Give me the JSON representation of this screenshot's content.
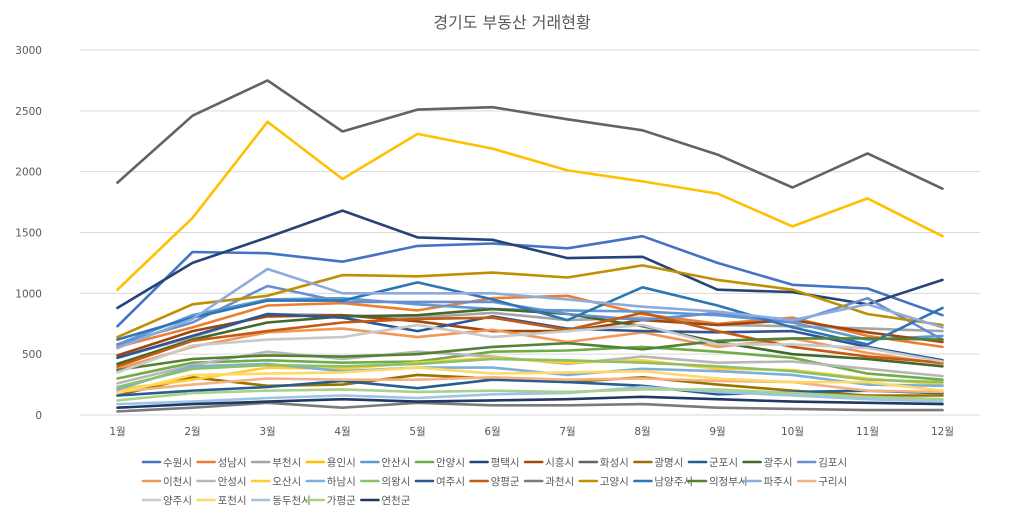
{
  "chart_data": {
    "type": "line",
    "title": "경기도 부동산 거래현황",
    "xlabel": "",
    "ylabel": "",
    "categories": [
      "1월",
      "2월",
      "3월",
      "4월",
      "5월",
      "6월",
      "7월",
      "8월",
      "9월",
      "10월",
      "11월",
      "12월"
    ],
    "ylim": [
      0,
      3000
    ],
    "yticks": [
      0,
      500,
      1000,
      1500,
      2000,
      2500,
      3000
    ],
    "grid": true,
    "legend_position": "bottom",
    "series": [
      {
        "name": "수원시",
        "color": "#4472C4",
        "values": [
          730,
          1340,
          1330,
          1260,
          1390,
          1410,
          1370,
          1470,
          1250,
          1070,
          1040,
          820
        ]
      },
      {
        "name": "성남시",
        "color": "#ED7D31",
        "values": [
          560,
          720,
          900,
          920,
          860,
          960,
          980,
          830,
          750,
          800,
          650,
          560
        ]
      },
      {
        "name": "부천시",
        "color": "#A5A5A5",
        "values": [
          470,
          640,
          830,
          820,
          800,
          840,
          780,
          800,
          740,
          730,
          710,
          690
        ]
      },
      {
        "name": "용인시",
        "color": "#FFC000",
        "values": [
          1030,
          1620,
          2410,
          1940,
          2310,
          2190,
          2010,
          1920,
          1820,
          1550,
          1780,
          1470
        ]
      },
      {
        "name": "안산시",
        "color": "#5B9BD5",
        "values": [
          580,
          820,
          950,
          960,
          910,
          870,
          860,
          850,
          820,
          760,
          620,
          650
        ]
      },
      {
        "name": "안양시",
        "color": "#70AD47",
        "values": [
          300,
          430,
          450,
          430,
          440,
          520,
          530,
          560,
          520,
          470,
          340,
          290
        ]
      },
      {
        "name": "평택시",
        "color": "#264478",
        "values": [
          880,
          1250,
          1460,
          1680,
          1460,
          1440,
          1290,
          1300,
          1030,
          1010,
          910,
          1110
        ]
      },
      {
        "name": "시흥시",
        "color": "#9E480E",
        "values": [
          490,
          690,
          810,
          820,
          770,
          690,
          690,
          780,
          740,
          780,
          680,
          600
        ]
      },
      {
        "name": "화성시",
        "color": "#636363",
        "values": [
          1910,
          2460,
          2750,
          2330,
          2510,
          2530,
          2430,
          2340,
          2140,
          1870,
          2150,
          1860
        ]
      },
      {
        "name": "광명시",
        "color": "#997300",
        "values": [
          160,
          310,
          240,
          250,
          330,
          300,
          270,
          310,
          250,
          200,
          160,
          160
        ]
      },
      {
        "name": "군포시",
        "color": "#255E91",
        "values": [
          160,
          200,
          230,
          280,
          220,
          290,
          270,
          240,
          170,
          190,
          200,
          180
        ]
      },
      {
        "name": "광주시",
        "color": "#43682B",
        "values": [
          420,
          620,
          760,
          810,
          820,
          870,
          830,
          730,
          600,
          500,
          460,
          400
        ]
      },
      {
        "name": "김포시",
        "color": "#698ED0",
        "values": [
          580,
          760,
          1060,
          930,
          930,
          930,
          830,
          780,
          840,
          760,
          960,
          620
        ]
      },
      {
        "name": "이천시",
        "color": "#F1975A",
        "values": [
          380,
          560,
          680,
          710,
          640,
          700,
          600,
          680,
          560,
          630,
          510,
          420
        ]
      },
      {
        "name": "안성시",
        "color": "#B7B7B7",
        "values": [
          260,
          410,
          520,
          460,
          520,
          480,
          420,
          480,
          430,
          440,
          380,
          320
        ]
      },
      {
        "name": "오산시",
        "color": "#FFCD33",
        "values": [
          210,
          290,
          390,
          380,
          430,
          470,
          430,
          450,
          380,
          370,
          300,
          250
        ]
      },
      {
        "name": "하남시",
        "color": "#7CAFDD",
        "values": [
          210,
          400,
          420,
          360,
          390,
          390,
          330,
          380,
          360,
          330,
          250,
          240
        ]
      },
      {
        "name": "의왕시",
        "color": "#8CC168",
        "values": [
          230,
          380,
          410,
          400,
          420,
          460,
          450,
          430,
          400,
          360,
          290,
          270
        ]
      },
      {
        "name": "여주시",
        "color": "#2F5597",
        "values": [
          470,
          650,
          830,
          800,
          690,
          810,
          710,
          690,
          680,
          690,
          560,
          450
        ]
      },
      {
        "name": "양평군",
        "color": "#C55A11",
        "values": [
          400,
          610,
          690,
          760,
          790,
          800,
          700,
          840,
          690,
          560,
          480,
          430
        ]
      },
      {
        "name": "과천시",
        "color": "#7B7B7B",
        "values": [
          30,
          60,
          100,
          60,
          100,
          80,
          80,
          90,
          60,
          50,
          40,
          40
        ]
      },
      {
        "name": "고양시",
        "color": "#BF9000",
        "values": [
          640,
          910,
          980,
          1150,
          1140,
          1170,
          1130,
          1230,
          1110,
          1030,
          830,
          740
        ]
      },
      {
        "name": "남양주시",
        "color": "#2E75B6",
        "values": [
          620,
          800,
          940,
          940,
          1090,
          950,
          780,
          1050,
          900,
          720,
          580,
          880
        ]
      },
      {
        "name": "의정부시",
        "color": "#548235",
        "values": [
          370,
          460,
          490,
          480,
          500,
          560,
          590,
          540,
          610,
          630,
          630,
          620
        ]
      },
      {
        "name": "파주시",
        "color": "#8FAADC",
        "values": [
          550,
          790,
          1200,
          1000,
          1000,
          1000,
          950,
          890,
          850,
          780,
          910,
          720
        ]
      },
      {
        "name": "구리시",
        "color": "#F4B183",
        "values": [
          190,
          250,
          300,
          290,
          290,
          310,
          290,
          300,
          280,
          270,
          200,
          190
        ]
      },
      {
        "name": "양주시",
        "color": "#C9C9C9",
        "values": [
          350,
          570,
          620,
          640,
          740,
          640,
          690,
          740,
          580,
          580,
          550,
          440
        ]
      },
      {
        "name": "포천시",
        "color": "#FFD966",
        "values": [
          180,
          330,
          340,
          350,
          390,
          340,
          350,
          360,
          300,
          270,
          270,
          200
        ]
      },
      {
        "name": "동두천시",
        "color": "#9DC3E6",
        "values": [
          90,
          110,
          140,
          160,
          140,
          170,
          180,
          230,
          190,
          160,
          130,
          110
        ]
      },
      {
        "name": "가평군",
        "color": "#A9D18E",
        "values": [
          120,
          180,
          200,
          210,
          190,
          200,
          190,
          210,
          210,
          180,
          150,
          130
        ]
      },
      {
        "name": "연천군",
        "color": "#203864",
        "values": [
          60,
          90,
          110,
          130,
          110,
          120,
          130,
          150,
          130,
          110,
          100,
          90
        ]
      }
    ]
  }
}
